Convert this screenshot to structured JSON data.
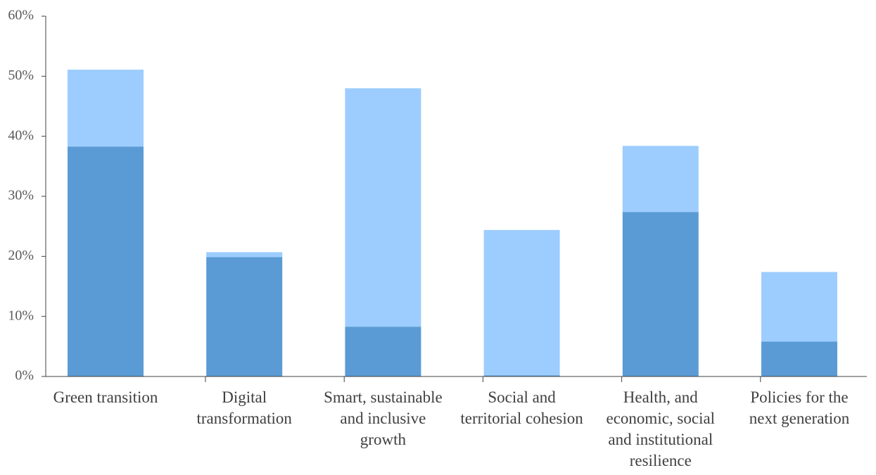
{
  "chart_data": {
    "type": "stacked_bar",
    "categories": [
      "Green transition",
      "Digital transformation",
      "Smart, sustainable and inclusive growth",
      "Social and territorial cohesion",
      "Health, and economic, social and institutional resilience",
      "Policies for the next generation"
    ],
    "series": [
      {
        "color": "#5b9bd5",
        "values": [
          38.3,
          19.9,
          8.3,
          0.2,
          27.4,
          5.8
        ]
      },
      {
        "color": "#9dcdff",
        "values": [
          12.8,
          0.8,
          39.7,
          24.2,
          11.0,
          11.6
        ]
      }
    ],
    "ylim": [
      0,
      60
    ],
    "yticks": [
      {
        "value": 0,
        "label": "0%"
      },
      {
        "value": 10,
        "label": "10%"
      },
      {
        "value": 20,
        "label": "20%"
      },
      {
        "value": 30,
        "label": "30%"
      },
      {
        "value": 40,
        "label": "40%"
      },
      {
        "value": 50,
        "label": "50%"
      },
      {
        "value": 60,
        "label": "60%"
      }
    ],
    "grid": false
  }
}
